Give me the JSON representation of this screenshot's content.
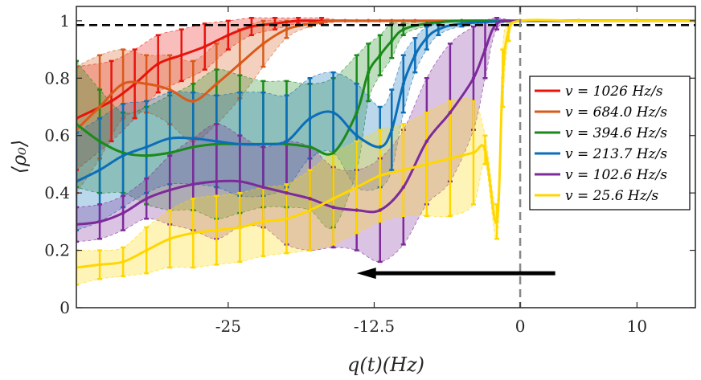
{
  "chart_data": {
    "type": "line",
    "title": "",
    "xlabel": "q(t)(Hz)",
    "ylabel": "⟨ρ₀⟩",
    "xlim": [
      -38,
      15
    ],
    "ylim": [
      0,
      1.05
    ],
    "x_ticks": [
      -25,
      -12.5,
      0,
      10
    ],
    "x_tick_labels": [
      "-25",
      "-12.5",
      "0",
      "10"
    ],
    "y_ticks": [
      0,
      0.2,
      0.4,
      0.6,
      0.8,
      1
    ],
    "y_tick_labels": [
      "0",
      "0.2",
      "0.4",
      "0.6",
      "0.8",
      "1"
    ],
    "reference_hline": 0.985,
    "reference_vline": 0,
    "arrow": {
      "from_x": 3,
      "to_x": -14,
      "y": 0.12
    },
    "legend_position": "right",
    "series": [
      {
        "name": "v = 1026  Hz/s",
        "color": "#e8140c",
        "x": [
          -38,
          -35,
          -33,
          -31,
          -29,
          -27,
          -25,
          -23,
          -21,
          -19,
          -17,
          -15,
          -13,
          -11,
          -9,
          -5,
          0,
          5,
          10,
          15
        ],
        "y": [
          0.66,
          0.72,
          0.78,
          0.85,
          0.88,
          0.91,
          0.95,
          0.98,
          0.99,
          1.0,
          1.0,
          1.0,
          1.0,
          1.0,
          1.0,
          1.0,
          1.0,
          1.0,
          1.0,
          1.0
        ],
        "err": [
          0.18,
          0.14,
          0.12,
          0.1,
          0.09,
          0.08,
          0.05,
          0.03,
          0.02,
          0.01,
          0.01,
          0,
          0,
          0,
          0,
          0,
          0,
          0,
          0,
          0
        ]
      },
      {
        "name": "v = 684.0  Hz/s",
        "color": "#d95a1a",
        "x": [
          -38,
          -36,
          -34,
          -32,
          -30,
          -28,
          -26,
          -24,
          -22,
          -20,
          -18,
          -16,
          -14,
          -12,
          -10,
          -5,
          0,
          5,
          10,
          15
        ],
        "y": [
          0.62,
          0.7,
          0.78,
          0.78,
          0.76,
          0.72,
          0.78,
          0.85,
          0.92,
          0.97,
          0.99,
          1.0,
          1.0,
          1.0,
          1.0,
          1.0,
          1.0,
          1.0,
          1.0,
          1.0
        ],
        "err": [
          0.22,
          0.18,
          0.12,
          0.1,
          0.12,
          0.14,
          0.14,
          0.12,
          0.08,
          0.03,
          0.01,
          0,
          0,
          0,
          0,
          0,
          0,
          0,
          0,
          0
        ]
      },
      {
        "name": "v = 394.6  Hz/s",
        "color": "#1a8a1a",
        "x": [
          -38,
          -36,
          -34,
          -32,
          -30,
          -28,
          -26,
          -24,
          -22,
          -20,
          -18,
          -16,
          -14,
          -13,
          -12,
          -11,
          -10,
          -8,
          -5,
          0,
          5,
          10,
          15
        ],
        "y": [
          0.64,
          0.58,
          0.54,
          0.53,
          0.54,
          0.56,
          0.57,
          0.57,
          0.57,
          0.57,
          0.56,
          0.54,
          0.68,
          0.82,
          0.88,
          0.93,
          0.97,
          0.99,
          1.0,
          1.0,
          1.0,
          1.0,
          1.0
        ],
        "err": [
          0.22,
          0.18,
          0.14,
          0.17,
          0.2,
          0.22,
          0.26,
          0.24,
          0.22,
          0.22,
          0.22,
          0.26,
          0.2,
          0.1,
          0.07,
          0.06,
          0.02,
          0.01,
          0,
          0,
          0,
          0,
          0
        ]
      },
      {
        "name": "v = 213.7  Hz/s",
        "color": "#0a6eb8",
        "x": [
          -38,
          -36,
          -34,
          -32,
          -30,
          -28,
          -26,
          -24,
          -22,
          -20,
          -18,
          -16,
          -14,
          -12,
          -11,
          -10,
          -9,
          -8,
          -7,
          -5,
          0,
          5,
          10,
          15
        ],
        "y": [
          0.44,
          0.48,
          0.53,
          0.56,
          0.59,
          0.59,
          0.58,
          0.57,
          0.57,
          0.58,
          0.66,
          0.68,
          0.6,
          0.56,
          0.62,
          0.78,
          0.88,
          0.94,
          0.97,
          0.99,
          1.0,
          1.0,
          1.0,
          1.0
        ],
        "err": [
          0.17,
          0.18,
          0.18,
          0.16,
          0.16,
          0.16,
          0.16,
          0.18,
          0.18,
          0.16,
          0.14,
          0.14,
          0.18,
          0.14,
          0.14,
          0.1,
          0.06,
          0.04,
          0.02,
          0.01,
          0,
          0,
          0,
          0
        ]
      },
      {
        "name": "v = 102.6  Hz/s",
        "color": "#7d2a9a",
        "x": [
          -38,
          -36,
          -34,
          -32,
          -30,
          -28,
          -26,
          -24,
          -22,
          -20,
          -18,
          -16,
          -14,
          -12,
          -10,
          -8,
          -6,
          -4,
          -3,
          -2,
          0,
          5,
          10,
          15
        ],
        "y": [
          0.29,
          0.3,
          0.33,
          0.38,
          0.41,
          0.43,
          0.44,
          0.44,
          0.42,
          0.4,
          0.38,
          0.35,
          0.34,
          0.34,
          0.42,
          0.58,
          0.68,
          0.8,
          0.9,
          0.99,
          1.0,
          1.0,
          1.0,
          1.0
        ],
        "err": [
          0.06,
          0.06,
          0.06,
          0.07,
          0.12,
          0.16,
          0.2,
          0.16,
          0.14,
          0.18,
          0.18,
          0.14,
          0.14,
          0.18,
          0.2,
          0.22,
          0.24,
          0.18,
          0.1,
          0.02,
          0,
          0,
          0,
          0
        ]
      },
      {
        "name": "v = 25.6   Hz/s",
        "color": "#ffd700",
        "x": [
          -38,
          -36,
          -34,
          -32,
          -30,
          -28,
          -26,
          -24,
          -22,
          -20,
          -18,
          -16,
          -14,
          -12,
          -10,
          -8,
          -6,
          -4,
          -3,
          -2,
          -1.5,
          -1,
          0,
          5,
          10,
          15
        ],
        "y": [
          0.14,
          0.15,
          0.16,
          0.2,
          0.24,
          0.26,
          0.27,
          0.28,
          0.3,
          0.31,
          0.34,
          0.38,
          0.42,
          0.46,
          0.48,
          0.5,
          0.52,
          0.54,
          0.55,
          0.3,
          0.8,
          0.96,
          1.0,
          1.0,
          1.0,
          1.0
        ],
        "err": [
          0.06,
          0.05,
          0.05,
          0.08,
          0.1,
          0.12,
          0.12,
          0.12,
          0.12,
          0.12,
          0.14,
          0.16,
          0.16,
          0.16,
          0.16,
          0.18,
          0.2,
          0.18,
          0.05,
          0.06,
          0.1,
          0.03,
          0,
          0,
          0,
          0
        ]
      }
    ]
  }
}
